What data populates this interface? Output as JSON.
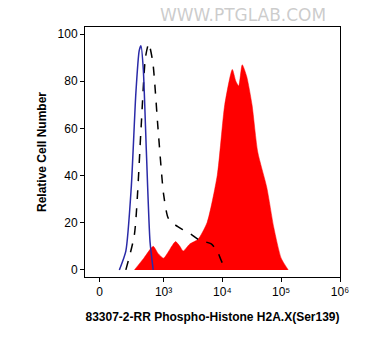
{
  "chart_data": {
    "type": "histogram_overlay",
    "xlabel": "83307-2-RR Phospho-Histone H2A.X(Ser139)",
    "ylabel": "Relative Cell Number",
    "annotations": [
      "WWW.PTGLAB.COM"
    ],
    "log": "x",
    "grid": false,
    "xlim": [
      -100,
      1000000
    ],
    "ylim": [
      -3,
      103
    ],
    "xticks": [
      0,
      {
        "value": 1000,
        "label": "10³"
      },
      {
        "value": 10000,
        "label": "10⁴"
      },
      {
        "value": 100000,
        "label": "10⁵"
      },
      {
        "value": 1000000,
        "label": "10⁶"
      }
    ],
    "yticks": [
      0,
      20,
      40,
      60,
      80,
      100
    ],
    "series": [
      {
        "type": "area",
        "color": "#ff0000",
        "line_style": "solid",
        "x": [
          300,
          450,
          660,
          800,
          1000,
          1300,
          1600,
          1900,
          2160,
          2800,
          3870,
          5500,
          8200,
          11000,
          14800,
          17000,
          19000,
          21800,
          26000,
          32000,
          40000,
          57000,
          75000,
          100000,
          132000
        ],
        "values": [
          0,
          5,
          10,
          7,
          5,
          9,
          12,
          10,
          8,
          11,
          13,
          20,
          40,
          70,
          85,
          80,
          78,
          87,
          82,
          70,
          50,
          35,
          18,
          5,
          0
        ]
      },
      {
        "type": "line",
        "color": "#000000",
        "line_style": "dash",
        "x": [
          200,
          300,
          400,
          480,
          550,
          650,
          800,
          1000,
          1200,
          1600,
          2160,
          3000,
          3870,
          5000,
          6500,
          8200,
          10000,
          12200
        ],
        "values": [
          0,
          15,
          60,
          90,
          96,
          88,
          60,
          32,
          22,
          19,
          17,
          15,
          13,
          12,
          11,
          8,
          3,
          0
        ]
      },
      {
        "type": "line",
        "color": "#2a2aa8",
        "line_style": "solid",
        "x": [
          140,
          200,
          260,
          320,
          370,
          400,
          440,
          500,
          580,
          660
        ],
        "values": [
          0,
          8,
          35,
          75,
          93,
          95,
          85,
          50,
          12,
          0
        ]
      }
    ]
  }
}
